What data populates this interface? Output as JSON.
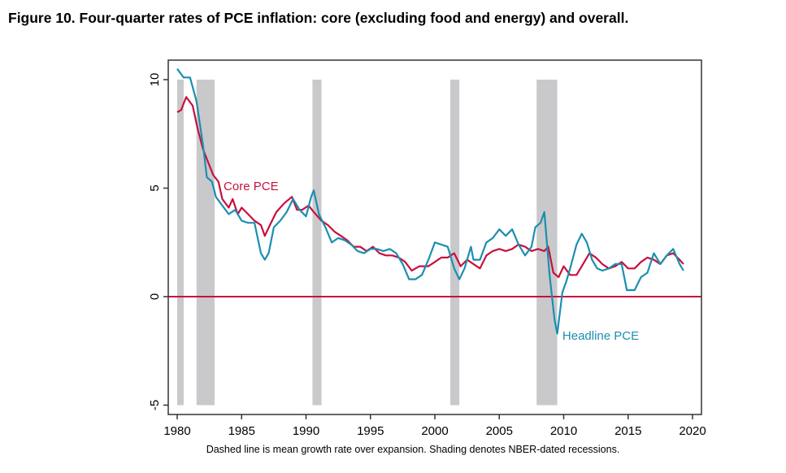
{
  "figure_title": "Figure 10. Four-quarter rates of PCE inflation: core (excluding food and energy) and overall.",
  "chart_data": {
    "type": "line",
    "title": "Figure 10. Four-quarter rates of PCE inflation: core (excluding food and energy) and overall.",
    "xlabel": "",
    "ylabel": "",
    "xlim": [
      1979.4,
      2021.0
    ],
    "ylim": [
      -6.0,
      11.0
    ],
    "x_ticks": [
      1980,
      1985,
      1990,
      1995,
      2000,
      2005,
      2010,
      2015,
      2020
    ],
    "y_ticks": [
      -5,
      0,
      5,
      10
    ],
    "grid": false,
    "note": "Dashed line is mean growth rate over expansion. Shading denotes NBER-dated recessions.",
    "reference_line": {
      "y": 0,
      "color": "#c8103e"
    },
    "recessions": [
      {
        "start": 1980.0,
        "end": 1980.5
      },
      {
        "start": 1981.5,
        "end": 1982.9
      },
      {
        "start": 1990.5,
        "end": 1991.2
      },
      {
        "start": 2001.2,
        "end": 2001.9
      },
      {
        "start": 2007.9,
        "end": 2009.5
      }
    ],
    "recession_range": [
      -5,
      10
    ],
    "series": [
      {
        "name": "Core PCE",
        "color": "#c8103e",
        "label_position": {
          "x": 1983.6,
          "y": 5.1
        },
        "x": [
          1980,
          1980.3,
          1980.7,
          1981.2,
          1981.6,
          1982,
          1982.4,
          1982.8,
          1983.2,
          1983.5,
          1984,
          1984.3,
          1984.7,
          1985,
          1985.5,
          1986,
          1986.5,
          1986.8,
          1987.2,
          1987.7,
          1988.3,
          1988.9,
          1989.3,
          1989.7,
          1990.2,
          1990.6,
          1991.2,
          1991.7,
          1992.2,
          1992.7,
          1993.2,
          1993.7,
          1994.2,
          1994.7,
          1995.2,
          1995.7,
          1996.2,
          1996.7,
          1997.2,
          1997.7,
          1998.2,
          1998.8,
          1999.5,
          2000,
          2000.5,
          2001,
          2001.5,
          2002,
          2002.5,
          2003,
          2003.5,
          2004,
          2004.5,
          2005,
          2005.5,
          2006,
          2006.5,
          2007,
          2007.5,
          2008,
          2008.5,
          2008.8,
          2009.2,
          2009.6,
          2010,
          2010.5,
          2011,
          2011.5,
          2012,
          2012.5,
          2013,
          2013.5,
          2014,
          2014.5,
          2015,
          2015.5,
          2016,
          2016.5,
          2017,
          2017.5,
          2018,
          2018.5,
          2019,
          2019.3
        ],
        "values": [
          8.5,
          8.6,
          9.2,
          8.8,
          7.7,
          6.8,
          6.2,
          5.6,
          5.3,
          4.5,
          4.1,
          4.5,
          3.8,
          4.1,
          3.8,
          3.5,
          3.3,
          2.8,
          3.3,
          3.9,
          4.3,
          4.6,
          4.0,
          4.0,
          4.2,
          3.9,
          3.5,
          3.3,
          3.0,
          2.8,
          2.6,
          2.3,
          2.3,
          2.1,
          2.3,
          2.0,
          1.9,
          1.9,
          1.8,
          1.6,
          1.2,
          1.4,
          1.4,
          1.6,
          1.8,
          1.8,
          2.0,
          1.4,
          1.7,
          1.5,
          1.3,
          1.9,
          2.1,
          2.2,
          2.1,
          2.2,
          2.4,
          2.3,
          2.1,
          2.2,
          2.1,
          2.3,
          1.1,
          0.9,
          1.4,
          1.0,
          1.0,
          1.5,
          2.0,
          1.8,
          1.5,
          1.3,
          1.4,
          1.6,
          1.3,
          1.3,
          1.6,
          1.8,
          1.7,
          1.5,
          1.9,
          2.0,
          1.7,
          1.5
        ]
      },
      {
        "name": "Headline PCE",
        "color": "#1b8fb0",
        "label_position": {
          "x": 2009.9,
          "y": -1.8
        },
        "x": [
          1980,
          1980.5,
          1981,
          1981.5,
          1982,
          1982.3,
          1982.7,
          1983,
          1983.5,
          1984,
          1984.5,
          1985,
          1985.5,
          1986,
          1986.5,
          1986.8,
          1987.1,
          1987.5,
          1988,
          1988.5,
          1989,
          1989.5,
          1990,
          1990.4,
          1990.6,
          1991,
          1991.5,
          1992,
          1992.5,
          1993,
          1993.5,
          1994,
          1994.5,
          1995,
          1995.5,
          1996,
          1996.5,
          1997,
          1997.5,
          1998,
          1998.5,
          1999,
          1999.5,
          2000,
          2000.5,
          2001,
          2001.5,
          2001.9,
          2002.3,
          2002.8,
          2003,
          2003.5,
          2004,
          2004.5,
          2005,
          2005.5,
          2006,
          2006.5,
          2007,
          2007.5,
          2007.8,
          2008.2,
          2008.5,
          2008.9,
          2009.3,
          2009.5,
          2009.9,
          2010.2,
          2010.5,
          2011,
          2011.4,
          2011.8,
          2012.2,
          2012.6,
          2013,
          2013.5,
          2014,
          2014.5,
          2014.9,
          2015.5,
          2016,
          2016.5,
          2017,
          2017.5,
          2018,
          2018.5,
          2019,
          2019.3
        ],
        "values": [
          10.5,
          10.1,
          10.1,
          9.0,
          7.0,
          5.5,
          5.3,
          4.6,
          4.2,
          3.8,
          4.0,
          3.5,
          3.4,
          3.4,
          2.0,
          1.7,
          2.0,
          3.2,
          3.5,
          3.9,
          4.5,
          4.0,
          3.7,
          4.6,
          4.9,
          3.8,
          3.2,
          2.5,
          2.7,
          2.6,
          2.4,
          2.1,
          2.0,
          2.2,
          2.2,
          2.1,
          2.2,
          2.0,
          1.5,
          0.8,
          0.8,
          1.0,
          1.7,
          2.5,
          2.4,
          2.3,
          1.3,
          0.8,
          1.3,
          2.3,
          1.7,
          1.7,
          2.5,
          2.7,
          3.1,
          2.8,
          3.1,
          2.4,
          1.9,
          2.3,
          3.2,
          3.4,
          3.9,
          1.0,
          -1.1,
          -1.7,
          0.2,
          0.7,
          1.3,
          2.4,
          2.9,
          2.5,
          1.7,
          1.3,
          1.2,
          1.3,
          1.5,
          1.5,
          0.3,
          0.3,
          0.9,
          1.1,
          2.0,
          1.5,
          1.9,
          2.2,
          1.5,
          1.2
        ]
      }
    ]
  }
}
